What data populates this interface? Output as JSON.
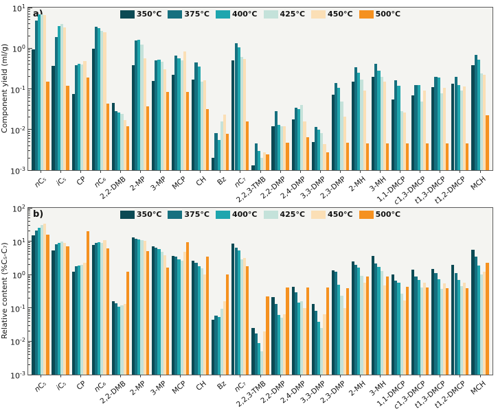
{
  "figure": {
    "type": "scientific-figure",
    "panel_count": 2,
    "background": "#ffffff",
    "plot_background": "#f4f4f1",
    "frame_color": "#5a5a5a"
  },
  "chart_data": [
    {
      "type": "bar",
      "panel_label": "a)",
      "ylabel": "Component yield (ml/g)",
      "yscale": "log",
      "ylim_exp": [
        -3,
        1
      ],
      "ytick_exps": [
        1,
        0,
        -1,
        -2,
        -3
      ],
      "grid": false,
      "legend_position": "top-center",
      "categories": [
        "nC₅",
        "iC₅",
        "CP",
        "nC₆",
        "2,2-DMB",
        "2-MP",
        "3-MP",
        "MCP",
        "CH",
        "Bz",
        "nC₇",
        "2,2,3-TMB",
        "2,2-DMP",
        "2,4-DMP",
        "3,3-DMP",
        "2,3-DMP",
        "2-MH",
        "3-MH",
        "1,1-DMCP",
        "c1,3-DMCP",
        "t1,3-DMCP",
        "t1,2-DMCP",
        "MCH"
      ],
      "series": [
        {
          "name": "350°C",
          "color": "#0b4a54",
          "values": [
            0.94,
            0.37,
            0.076,
            0.98,
            0.045,
            0.38,
            0.155,
            0.22,
            0.17,
            0.002,
            0.5,
            0.0013,
            0.012,
            0.018,
            0.005,
            0.073,
            0.15,
            0.2,
            0.055,
            0.07,
            0.11,
            0.135,
            0.38
          ]
        },
        {
          "name": "375°C",
          "color": "#16707f",
          "values": [
            4.7,
            1.9,
            0.38,
            3.4,
            0.028,
            1.55,
            0.5,
            0.67,
            0.44,
            0.008,
            1.3,
            0.0045,
            0.028,
            0.035,
            0.0115,
            0.14,
            0.34,
            0.42,
            0.165,
            0.125,
            0.195,
            0.195,
            0.68
          ]
        },
        {
          "name": "400°C",
          "color": "#1fa6ae",
          "values": [
            6.7,
            3.5,
            0.42,
            3.1,
            0.026,
            1.6,
            0.52,
            0.57,
            0.35,
            0.0055,
            1.05,
            0.003,
            0.013,
            0.032,
            0.01,
            0.105,
            0.25,
            0.28,
            0.12,
            0.125,
            0.19,
            0.125,
            0.52
          ]
        },
        {
          "name": "425°C",
          "color": "#c4e2da",
          "values": [
            6.9,
            4.0,
            0.4,
            2.7,
            0.024,
            1.25,
            0.46,
            0.5,
            0.15,
            0.016,
            0.62,
            0.002,
            0.012,
            0.04,
            0.008,
            0.048,
            0.17,
            0.2,
            0.028,
            0.048,
            0.078,
            0.09,
            0.24
          ]
        },
        {
          "name": "450°C",
          "color": "#fbdfb6",
          "values": [
            6.5,
            3.2,
            0.49,
            2.5,
            0.017,
            0.56,
            0.3,
            0.84,
            0.16,
            0.023,
            0.54,
            0.0028,
            0.012,
            0.016,
            0.0043,
            0.021,
            0.092,
            0.15,
            0.026,
            0.092,
            0.105,
            0.115,
            0.22
          ]
        },
        {
          "name": "500°C",
          "color": "#f59120",
          "values": [
            0.15,
            0.12,
            0.19,
            0.043,
            0.012,
            0.037,
            0.085,
            0.083,
            0.032,
            0.0077,
            0.016,
            0.0024,
            0.0047,
            0.0065,
            0.0027,
            0.0048,
            0.0045,
            0.0045,
            0.0045,
            0.0045,
            0.0045,
            0.0045,
            0.022
          ]
        }
      ]
    },
    {
      "type": "bar",
      "panel_label": "b)",
      "ylabel": "Relative content (%C₅-C₇)",
      "yscale": "log",
      "ylim_exp": [
        -3,
        2
      ],
      "ytick_exps": [
        2,
        1,
        0,
        -1,
        -2,
        -3
      ],
      "grid": false,
      "legend_position": "top-center",
      "categories": [
        "nC₅",
        "iC₅",
        "CP",
        "nC₆",
        "2,2-DMB",
        "2-MP",
        "3-MP",
        "MCP",
        "CH",
        "Bz",
        "nC₇",
        "2,2,3-TMB",
        "2,2-DMP",
        "2,4-DMP",
        "3,3-DMP",
        "2,3-DMP",
        "2-MH",
        "3-MH",
        "1,1-DMCP",
        "c1,3-DMCP",
        "t1,3-DMCP",
        "t1,2-DMCP",
        "MCH"
      ],
      "series": [
        {
          "name": "350°C",
          "color": "#0b4a54",
          "values": [
            15,
            5.4,
            1.2,
            7.6,
            0.16,
            13,
            6.9,
            3.7,
            2.6,
            0.045,
            8.5,
            0.025,
            0.21,
            0.44,
            0.13,
            1.35,
            2.5,
            3.6,
            1.0,
            1.44,
            1.5,
            2.0,
            5.5
          ]
        },
        {
          "name": "375°C",
          "color": "#16707f",
          "values": [
            21,
            8.0,
            1.8,
            9.1,
            0.14,
            12,
            6.3,
            3.5,
            2.3,
            0.06,
            6.5,
            0.017,
            0.13,
            0.29,
            0.083,
            1.2,
            2.0,
            2.2,
            0.66,
            0.89,
            1.1,
            1.1,
            3.5
          ]
        },
        {
          "name": "400°C",
          "color": "#1fa6ae",
          "values": [
            25,
            8.9,
            1.9,
            9.4,
            0.11,
            11.5,
            5.8,
            2.9,
            1.8,
            0.053,
            5.3,
            0.009,
            0.062,
            0.145,
            0.038,
            0.5,
            1.6,
            1.7,
            0.58,
            0.68,
            0.74,
            0.69,
            1.9
          ]
        },
        {
          "name": "425°C",
          "color": "#c4e2da",
          "values": [
            30,
            9.6,
            2.0,
            9.1,
            0.12,
            10.7,
            4.8,
            2.6,
            1.55,
            0.095,
            2.9,
            0.005,
            0.051,
            0.16,
            0.025,
            0.235,
            0.9,
            1.3,
            0.27,
            0.41,
            0.38,
            0.46,
            1.0
          ]
        },
        {
          "name": "450°C",
          "color": "#fbdfb6",
          "values": [
            33,
            8.9,
            2.3,
            11,
            0.13,
            10.4,
            3.8,
            4.9,
            1.0,
            0.16,
            3.2,
            0.02,
            0.065,
            0.1,
            0.065,
            0.1,
            0.58,
            0.48,
            0.17,
            0.56,
            0.54,
            0.58,
            1.2
          ]
        },
        {
          "name": "500°C",
          "color": "#f59120",
          "values": [
            16,
            7.2,
            20,
            6.2,
            1.2,
            5.0,
            1.6,
            9.2,
            3.4,
            1.0,
            1.8,
            0.22,
            0.41,
            0.41,
            0.41,
            0.4,
            0.87,
            0.89,
            0.44,
            0.42,
            0.4,
            0.4,
            2.3
          ]
        }
      ]
    }
  ]
}
